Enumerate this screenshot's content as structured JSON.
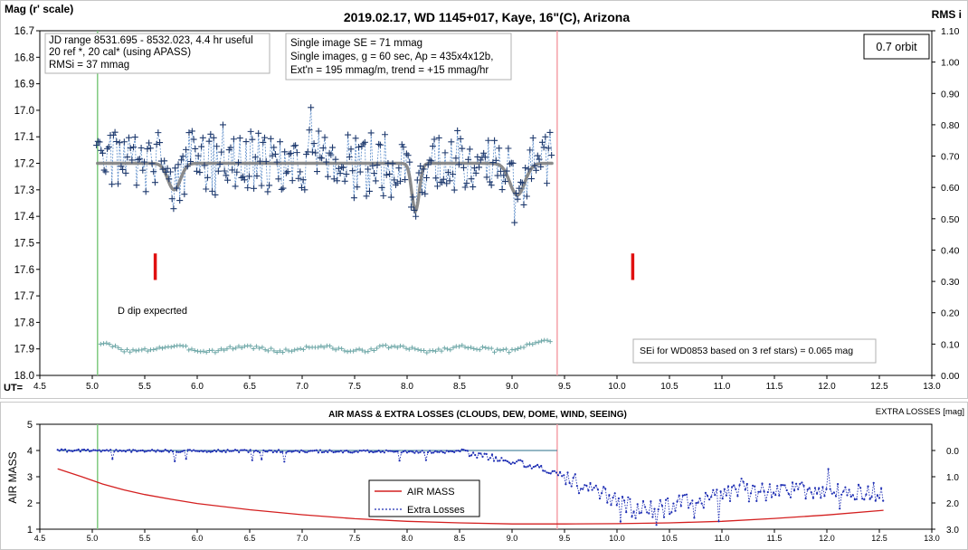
{
  "chart_data": [
    {
      "type": "scatter",
      "title": "2019.02.17, WD 1145+017, Kaye, 16\"(C), Arizona",
      "ylabel": "Mag (r' scale)",
      "y2label": "RMS i",
      "xlabel": "UT=",
      "xlim": [
        4.5,
        13.0
      ],
      "ylim": [
        18.0,
        16.7
      ],
      "y2lim": [
        0.0,
        1.1
      ],
      "xticks": [
        "4.5",
        "5.0",
        "5.5",
        "6.0",
        "6.5",
        "7.0",
        "7.5",
        "8.0",
        "8.5",
        "9.0",
        "9.5",
        "10.0",
        "10.5",
        "11.0",
        "11.5",
        "12.0",
        "12.5",
        "13.0"
      ],
      "yticks": [
        "16.7",
        "16.8",
        "16.9",
        "17.0",
        "17.1",
        "17.2",
        "17.3",
        "17.4",
        "17.5",
        "17.6",
        "17.7",
        "17.8",
        "17.9",
        "18.0"
      ],
      "y2ticks": [
        "1.10",
        "1.00",
        "0.90",
        "0.80",
        "0.70",
        "0.60",
        "0.50",
        "0.40",
        "0.30",
        "0.20",
        "0.10",
        "0.00"
      ],
      "grid": false,
      "annotations": {
        "box1": [
          "JD range 8531.695 - 8532.023, 4.4 hr useful",
          "20 ref *, 20 cal* (using APASS)",
          "RMSi = 37 mmag"
        ],
        "box2": [
          "Single image SE = 71 mmag",
          "Single images, g = 60 sec, Ap = 435x4x12b,",
          "Ext'n = 195 mmag/m, trend = +15 mmag/hr"
        ],
        "orbit": "0.7 orbit",
        "dip_note": "D dip expecrted",
        "sei_note": "SEi for WD0853 based on 3 ref stars) = 0.065 mag"
      },
      "vlines": [
        {
          "x": 5.05,
          "color": "#7fc97f"
        },
        {
          "x": 9.43,
          "color": "#f4a0a8"
        }
      ],
      "dip_markers": [
        {
          "x": 5.6,
          "y1": 17.54,
          "y2": 17.64
        },
        {
          "x": 10.15,
          "y1": 17.54,
          "y2": 17.64
        }
      ],
      "series": [
        {
          "name": "",
          "color": "#1f3a6e",
          "marker": "+",
          "generator": {
            "x_start": 5.04,
            "x_end": 9.38,
            "step": 0.0147,
            "baseline": 17.2,
            "amplitude": 0.11,
            "seed": 11
          }
        },
        {
          "name": "",
          "color": "#808080",
          "type": "model",
          "baseline": 17.2,
          "x_start": 5.05,
          "x_end": 9.38,
          "dips": [
            {
              "center": 5.78,
              "depth": 0.1,
              "width": 0.085
            },
            {
              "center": 8.08,
              "depth": 0.18,
              "width": 0.05
            },
            {
              "center": 9.05,
              "depth": 0.12,
              "width": 0.1
            }
          ]
        },
        {
          "name": "",
          "color": "#6fa8a8",
          "marker": "+",
          "axis": "right",
          "generator": {
            "x_start": 5.08,
            "x_end": 9.38,
            "step": 0.028,
            "baseline": 0.085,
            "amplitude": 0.012
          }
        }
      ]
    },
    {
      "type": "line",
      "title": "AIR MASS & EXTRA LOSSES (CLOUDS, DEW, DOME, WIND, SEEING)",
      "ylabel": "AIR MASS",
      "y2label": "EXTRA LOSSES [mag]",
      "xlim": [
        4.5,
        13.0
      ],
      "ylim": [
        1,
        5
      ],
      "y2lim": [
        3.0,
        -1.0
      ],
      "xticks": [
        "4.5",
        "5.0",
        "5.5",
        "6.0",
        "6.5",
        "7.0",
        "7.5",
        "8.0",
        "8.5",
        "9.0",
        "9.5",
        "10.0",
        "10.5",
        "11.0",
        "11.5",
        "12.0",
        "12.5",
        "13.0"
      ],
      "yticks": [
        "1",
        "2",
        "3",
        "4",
        "5"
      ],
      "y2ticks": [
        "0.0",
        "1.0",
        "2.0",
        "3.0"
      ],
      "legend": {
        "position": "center",
        "labels": [
          "AIR MASS",
          "Extra Losses"
        ]
      },
      "vlines": [
        {
          "x": 5.05,
          "color": "#7fc97f"
        },
        {
          "x": 9.43,
          "color": "#f4a0a8"
        }
      ],
      "series": [
        {
          "name": "AIR MASS",
          "color": "#d42020",
          "x": [
            4.67,
            4.9,
            5.1,
            5.3,
            5.5,
            5.75,
            6.0,
            6.5,
            7.0,
            7.5,
            8.0,
            8.5,
            9.0,
            9.5,
            10.0,
            10.5,
            11.0,
            11.5,
            12.0,
            12.54
          ],
          "values": [
            3.3,
            3.0,
            2.72,
            2.5,
            2.32,
            2.14,
            1.98,
            1.74,
            1.55,
            1.4,
            1.3,
            1.24,
            1.2,
            1.2,
            1.21,
            1.24,
            1.3,
            1.41,
            1.54,
            1.72
          ]
        },
        {
          "name": "Extra Losses",
          "color": "#1f2fb4",
          "marker": ".",
          "axis": "right",
          "generator": {
            "x_start": 4.67,
            "x_end": 12.54,
            "step": 0.018,
            "seed": 7
          },
          "shape": [
            {
              "x": 4.67,
              "y": 0.0
            },
            {
              "x": 8.5,
              "y": 0.05
            },
            {
              "x": 9.0,
              "y": 0.4
            },
            {
              "x": 9.4,
              "y": 0.8
            },
            {
              "x": 9.8,
              "y": 1.6
            },
            {
              "x": 10.2,
              "y": 2.3
            },
            {
              "x": 10.6,
              "y": 2.0
            },
            {
              "x": 11.2,
              "y": 1.6
            },
            {
              "x": 12.0,
              "y": 1.5
            },
            {
              "x": 12.54,
              "y": 1.6
            }
          ]
        },
        {
          "name": "",
          "color": "#2a6f8a",
          "axis": "right",
          "x": [
            4.67,
            9.43
          ],
          "values": [
            0.0,
            0.0
          ]
        }
      ]
    }
  ]
}
